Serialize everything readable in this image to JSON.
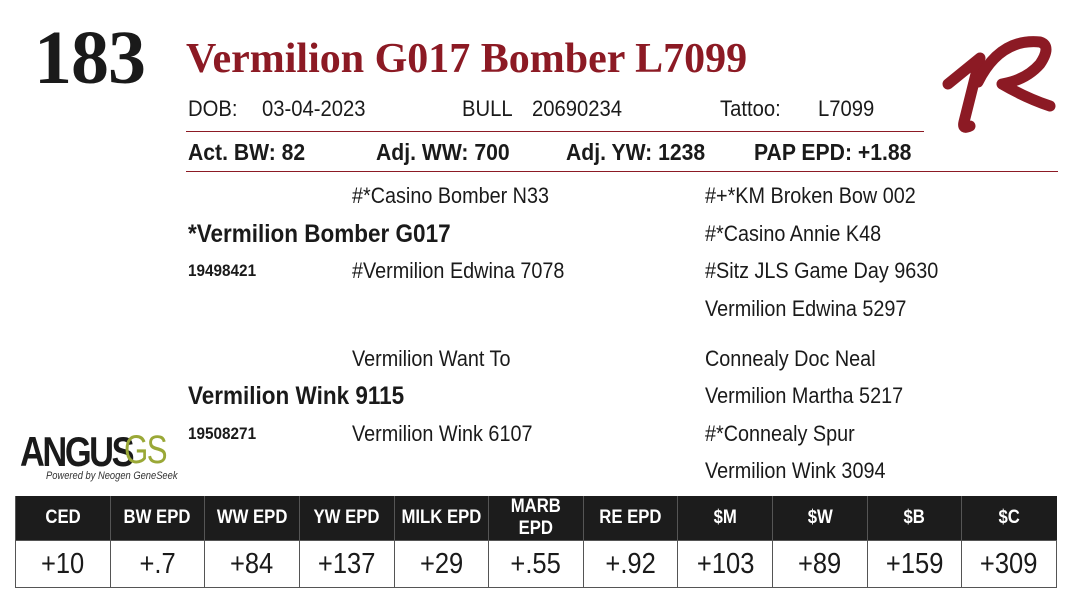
{
  "lot_number": "183",
  "animal_name": "Vermilion G017 Bomber L7099",
  "brand_logo": "VR",
  "info_row": {
    "dob_label": "DOB:",
    "dob_value": "03-04-2023",
    "sex_label": "BULL",
    "registration": "20690234",
    "tattoo_label": "Tattoo:",
    "tattoo_value": "L7099"
  },
  "stats_row": {
    "act_bw": "Act. BW: 82",
    "adj_ww": "Adj. WW: 700",
    "adj_yw": "Adj. YW: 1238",
    "pap_epd": "PAP EPD: +1.88"
  },
  "pedigree": {
    "sire": {
      "name": "*Vermilion Bomber G017",
      "registration": "19498421",
      "sire": "#*Casino Bomber N33",
      "dam": "#Vermilion Edwina 7078",
      "sire_sire": "#+*KM Broken Bow 002",
      "sire_dam": "#*Casino Annie K48",
      "dam_sire": "#Sitz JLS Game Day 9630",
      "dam_dam": "Vermilion Edwina 5297"
    },
    "dam": {
      "name": "Vermilion Wink 9115",
      "registration": "19508271",
      "sire": "Vermilion Want To",
      "dam": "Vermilion Wink 6107",
      "sire_sire": "Connealy Doc Neal",
      "sire_dam": "Vermilion Martha 5217",
      "dam_sire": "#*Connealy Spur",
      "dam_dam": "Vermilion Wink 3094"
    }
  },
  "angus_logo": {
    "word": "ANGUS",
    "suffix": "GS",
    "tagline": "Powered by Neogen GeneSeek"
  },
  "epd_table": {
    "headers": [
      "CED",
      "BW EPD",
      "WW EPD",
      "YW EPD",
      "MILK EPD",
      "MARB EPD",
      "RE EPD",
      "$M",
      "$W",
      "$B",
      "$C"
    ],
    "values": [
      "+10",
      "+.7",
      "+84",
      "+137",
      "+29",
      "+.55",
      "+.92",
      "+103",
      "+89",
      "+159",
      "+309"
    ]
  },
  "colors": {
    "accent": "#8c1a24",
    "header_bg": "#1c1c1c",
    "gs_green": "#9aa837"
  }
}
